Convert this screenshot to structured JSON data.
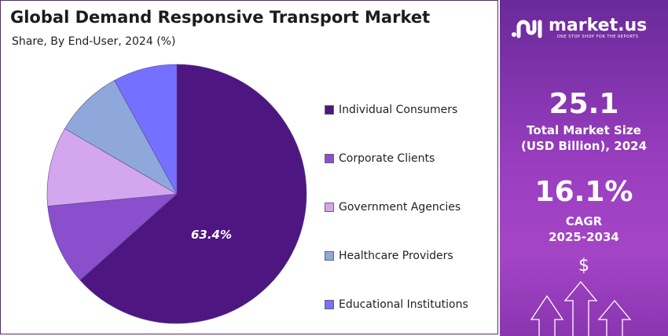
{
  "chart_data": {
    "type": "pie",
    "title": "Global Demand Responsive Transport Market",
    "subtitle": "Share, By End-User, 2024 (%)",
    "categories": [
      "Individual Consumers",
      "Corporate Clients",
      "Government Agencies",
      "Healthcare Providers",
      "Educational Institutions"
    ],
    "values": [
      63.4,
      10.1,
      9.9,
      8.6,
      8.0
    ],
    "colors": [
      "#4e1680",
      "#8a4fcc",
      "#d4a6ee",
      "#8fa8dc",
      "#7570ff"
    ],
    "data_labels": [
      "63.4%"
    ],
    "legend_position": "right"
  },
  "sidebar": {
    "logo_text": "market.us",
    "logo_tagline": "ONE STOP SHOP FOR THE REPORTS",
    "market_size": "25.1",
    "market_size_label_1": "Total Market Size",
    "market_size_label_2": "(USD Billion), 2024",
    "cagr": "16.1%",
    "cagr_label_1": "CAGR",
    "cagr_label_2": "2025-2034",
    "dollar_symbol": "$"
  }
}
